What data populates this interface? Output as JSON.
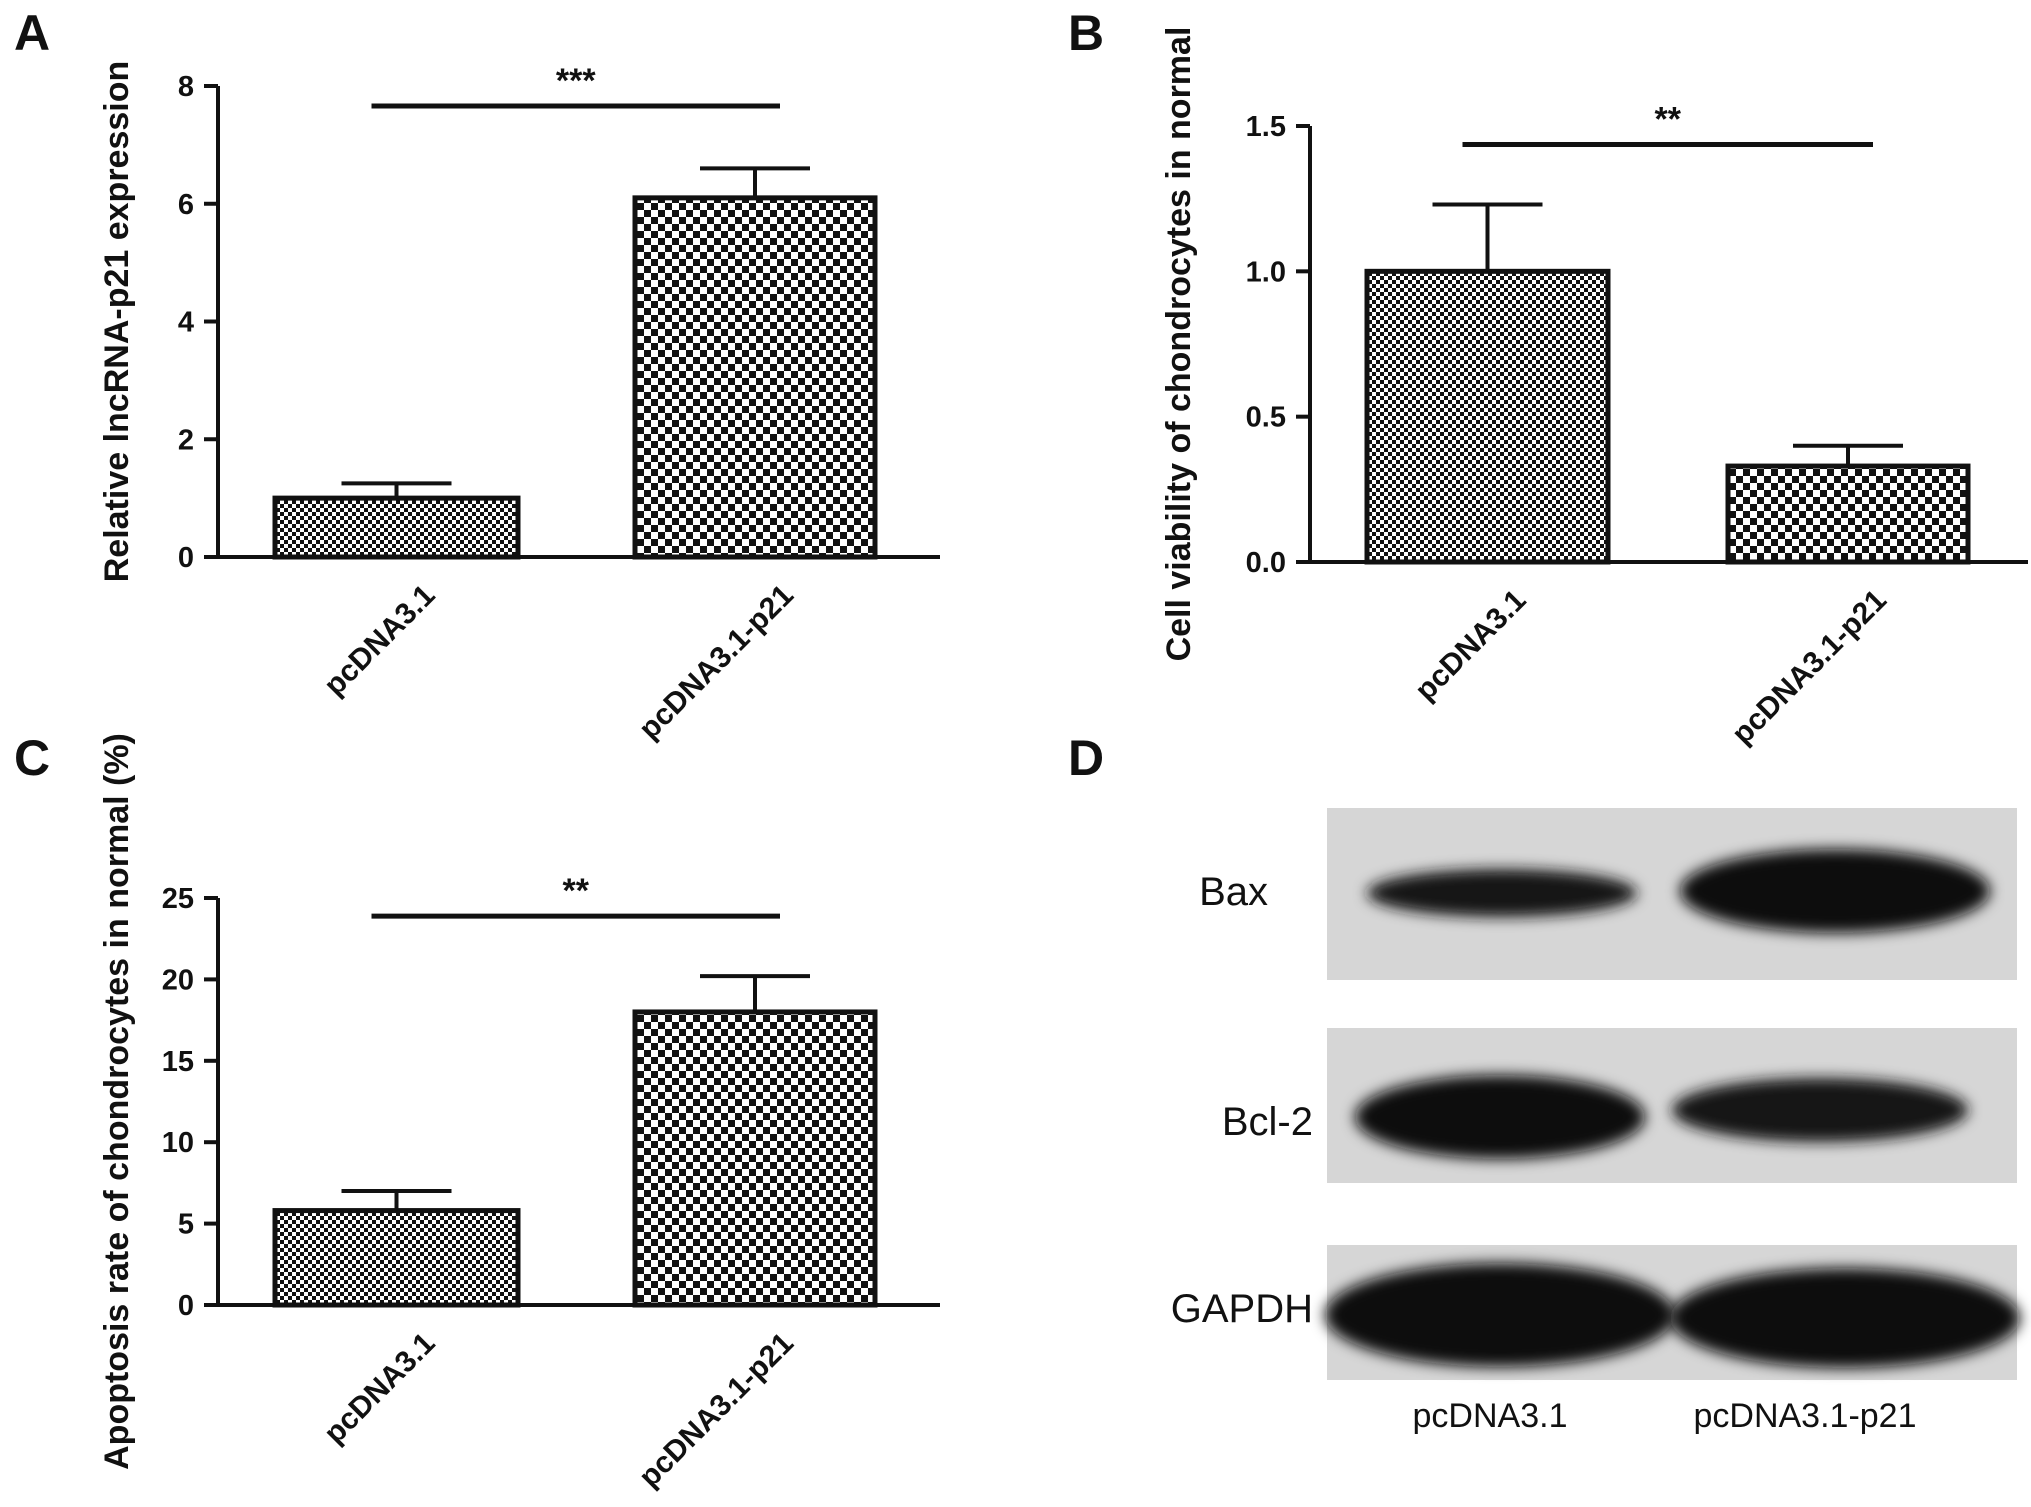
{
  "panels": {
    "A": "A",
    "B": "B",
    "C": "C",
    "D": "D"
  },
  "chart_data": [
    {
      "panel": "A",
      "type": "bar",
      "categories": [
        "pcDNA3.1",
        "pcDNA3.1-p21"
      ],
      "values": [
        1.0,
        6.1
      ],
      "errors": [
        0.25,
        0.5
      ],
      "ylabel": "Relative lncRNA-p21 expression",
      "ylim": [
        0,
        8
      ],
      "yticks": [
        "0",
        "2",
        "4",
        "6",
        "8"
      ],
      "significance": "***"
    },
    {
      "panel": "B",
      "type": "bar",
      "categories": [
        "pcDNA3.1",
        "pcDNA3.1-p21"
      ],
      "values": [
        1.0,
        0.33
      ],
      "errors": [
        0.23,
        0.07
      ],
      "ylabel": "Cell viability of chondrocytes in normal",
      "ylim": [
        0,
        1.5
      ],
      "yticks": [
        "0.0",
        "0.5",
        "1.0",
        "1.5"
      ],
      "significance": "**"
    },
    {
      "panel": "C",
      "type": "bar",
      "categories": [
        "pcDNA3.1",
        "pcDNA3.1-p21"
      ],
      "values": [
        5.8,
        18.0
      ],
      "errors": [
        1.2,
        2.2
      ],
      "ylabel": "Apoptosis rate of chondrocytes in normal (%)",
      "ylim": [
        0,
        25
      ],
      "yticks": [
        "0",
        "5",
        "10",
        "15",
        "20",
        "25"
      ],
      "significance": "**"
    }
  ],
  "western_blot": {
    "rows": [
      "Bax",
      "Bcl-2",
      "GAPDH"
    ],
    "lanes": [
      "pcDNA3.1",
      "pcDNA3.1-p21"
    ]
  },
  "colors": {
    "ink": "#111111",
    "blot_bg": "#d6d6d6",
    "band": "#0e0e0e"
  }
}
